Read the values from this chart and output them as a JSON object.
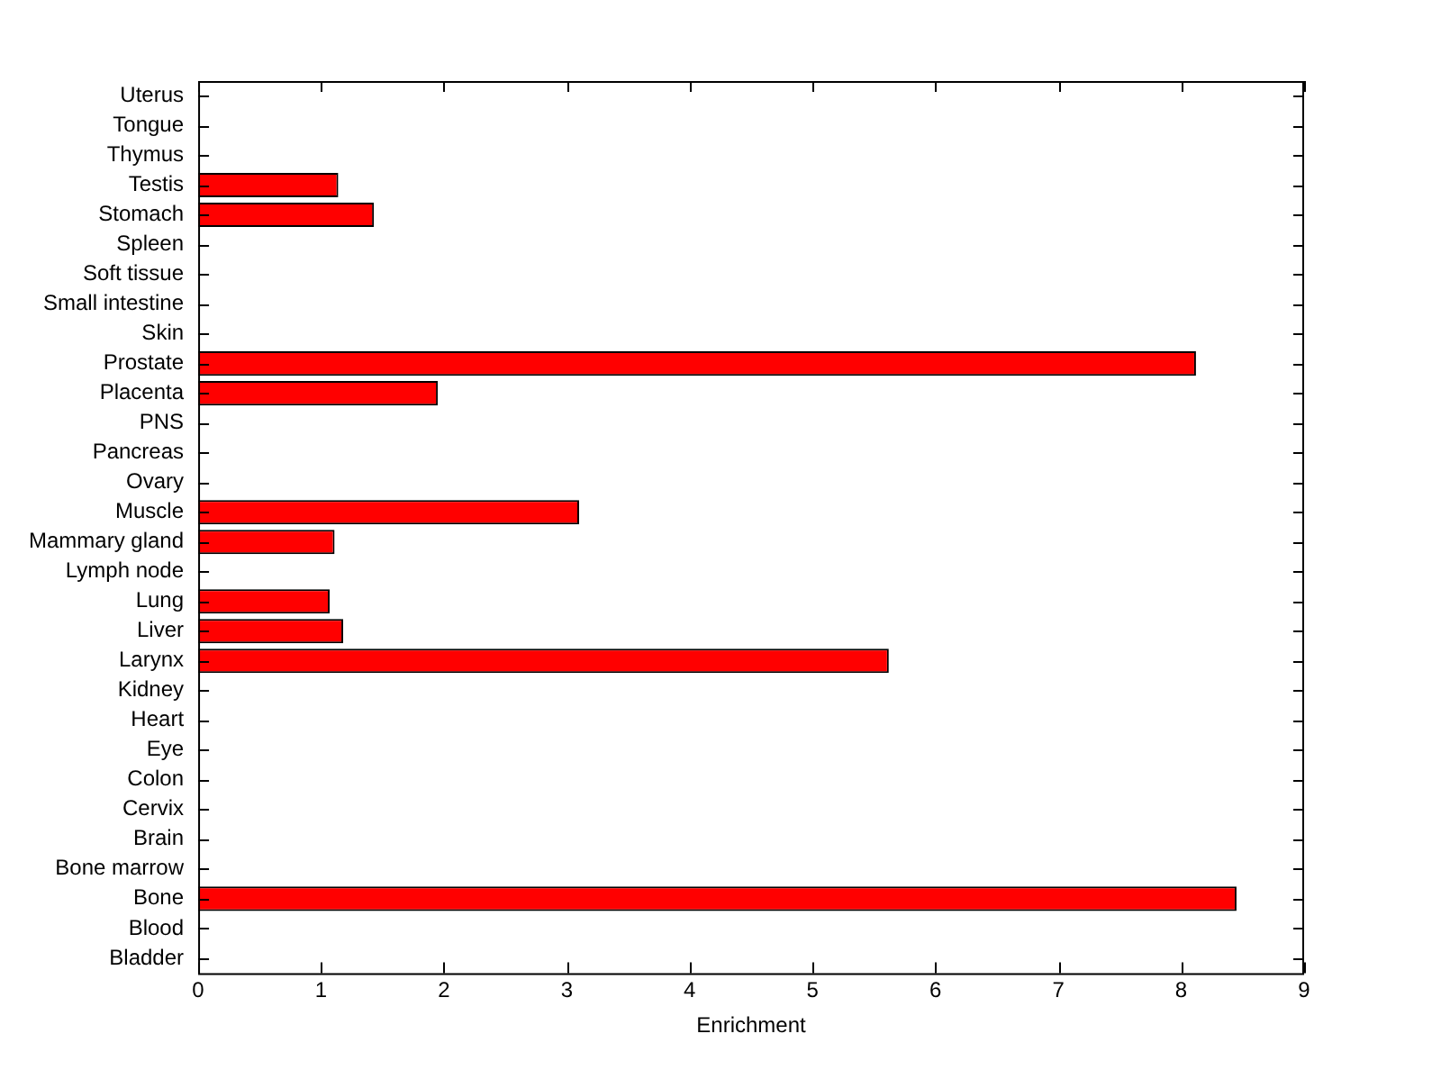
{
  "chart_data": {
    "type": "bar",
    "orientation": "horizontal",
    "xlabel": "Enrichment",
    "categories": [
      "Uterus",
      "Tongue",
      "Thymus",
      "Testis",
      "Stomach",
      "Spleen",
      "Soft tissue",
      "Small intestine",
      "Skin",
      "Prostate",
      "Placenta",
      "PNS",
      "Pancreas",
      "Ovary",
      "Muscle",
      "Mammary gland",
      "Lymph node",
      "Lung",
      "Liver",
      "Larynx",
      "Kidney",
      "Heart",
      "Eye",
      "Colon",
      "Cervix",
      "Brain",
      "Bone marrow",
      "Bone",
      "Blood",
      "Bladder"
    ],
    "values": [
      0,
      0,
      0,
      1.14,
      1.43,
      0,
      0,
      0,
      0,
      8.12,
      1.95,
      0,
      0,
      0,
      3.1,
      1.11,
      0,
      1.07,
      1.18,
      5.62,
      0,
      0,
      0,
      0,
      0,
      0,
      0,
      8.45,
      0,
      0
    ],
    "color": "#ff0000",
    "xlim": [
      0,
      9
    ],
    "xticks": [
      0,
      1,
      2,
      3,
      4,
      5,
      6,
      7,
      8,
      9
    ],
    "grid": false,
    "legend": false
  }
}
